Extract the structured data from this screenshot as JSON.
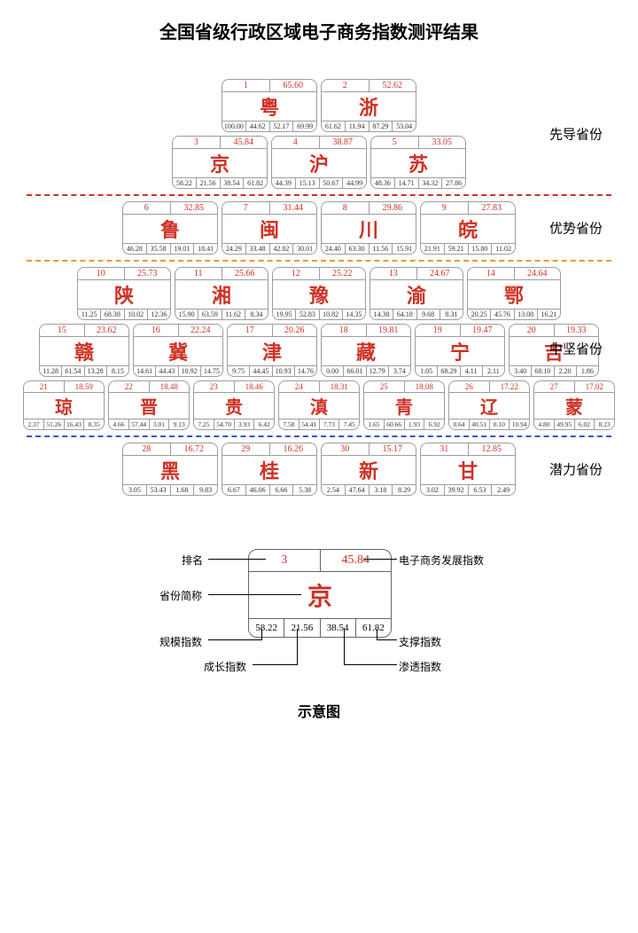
{
  "title": "全国省级行政区域电子商务指数测评结果",
  "divider_colors": [
    "#ce3226",
    "#e69b2d",
    "#3a4fcf"
  ],
  "tiers": [
    {
      "label": "先导省份",
      "rows": [
        [
          {
            "rank": 1,
            "score": "65.60",
            "name": "粤",
            "b": [
              "100.00",
              "44.62",
              "52.17",
              "69.99"
            ]
          },
          {
            "rank": 2,
            "score": "52.62",
            "name": "浙",
            "b": [
              "61.62",
              "11.94",
              "87.29",
              "53.04"
            ]
          }
        ],
        [
          {
            "rank": 3,
            "score": "45.84",
            "name": "京",
            "b": [
              "58.22",
              "21.56",
              "38.54",
              "61.82"
            ]
          },
          {
            "rank": 4,
            "score": "38.87",
            "name": "沪",
            "b": [
              "44.39",
              "15.13",
              "50.67",
              "44.99"
            ]
          },
          {
            "rank": 5,
            "score": "33.05",
            "name": "苏",
            "b": [
              "48.36",
              "14.71",
              "34.32",
              "27.86"
            ]
          }
        ]
      ]
    },
    {
      "label": "优势省份",
      "rows": [
        [
          {
            "rank": 6,
            "score": "32.85",
            "name": "鲁",
            "b": [
              "46.28",
              "35.58",
              "19.01",
              "18.41"
            ]
          },
          {
            "rank": 7,
            "score": "31.44",
            "name": "闽",
            "b": [
              "24.29",
              "33.48",
              "42.82",
              "30.01"
            ]
          },
          {
            "rank": 8,
            "score": "29.86",
            "name": "川",
            "b": [
              "24.40",
              "63.30",
              "11.56",
              "15.91"
            ]
          },
          {
            "rank": 9,
            "score": "27.83",
            "name": "皖",
            "b": [
              "21.91",
              "59.21",
              "15.80",
              "11.02"
            ]
          }
        ]
      ]
    },
    {
      "label": "中坚省份",
      "rows": [
        [
          {
            "rank": 10,
            "score": "25.73",
            "name": "陕",
            "b": [
              "11.25",
              "68.38",
              "10.02",
              "12.36"
            ]
          },
          {
            "rank": 11,
            "score": "25.66",
            "name": "湘",
            "b": [
              "15.90",
              "63.59",
              "11.62",
              "8.34"
            ]
          },
          {
            "rank": 12,
            "score": "25.22",
            "name": "豫",
            "b": [
              "19.95",
              "52.83",
              "10.82",
              "14.35"
            ]
          },
          {
            "rank": 13,
            "score": "24.67",
            "name": "渝",
            "b": [
              "14.38",
              "64.18",
              "9.68",
              "8.31"
            ]
          },
          {
            "rank": 14,
            "score": "24.64",
            "name": "鄂",
            "b": [
              "20.25",
              "45.76",
              "13.08",
              "16.21"
            ]
          }
        ],
        [
          {
            "rank": 15,
            "score": "23.62",
            "name": "赣",
            "b": [
              "11.28",
              "61.54",
              "13.28",
              "8.15"
            ]
          },
          {
            "rank": 16,
            "score": "22.24",
            "name": "冀",
            "b": [
              "14.61",
              "44.43",
              "10.92",
              "14.75"
            ]
          },
          {
            "rank": 17,
            "score": "20.26",
            "name": "津",
            "b": [
              "9.75",
              "44.45",
              "10.93",
              "14.76"
            ]
          },
          {
            "rank": 18,
            "score": "19.81",
            "name": "藏",
            "b": [
              "0.00",
              "66.01",
              "12.79",
              "3.74"
            ]
          },
          {
            "rank": 19,
            "score": "19.47",
            "name": "宁",
            "b": [
              "1.05",
              "68.29",
              "4.11",
              "2.11"
            ]
          },
          {
            "rank": 20,
            "score": "19.33",
            "name": "吉",
            "b": [
              "3.40",
              "68.10",
              "2.20",
              "1.86"
            ]
          }
        ],
        [
          {
            "rank": 21,
            "score": "18.59",
            "name": "琼",
            "b": [
              "2.37",
              "51.26",
              "16.43",
              "8.35"
            ]
          },
          {
            "rank": 22,
            "score": "18.48",
            "name": "晋",
            "b": [
              "4.66",
              "57.44",
              "3.01",
              "9.13"
            ]
          },
          {
            "rank": 23,
            "score": "18.46",
            "name": "贵",
            "b": [
              "7.25",
              "54.70",
              "3.93",
              "6.42"
            ]
          },
          {
            "rank": 24,
            "score": "18.31",
            "name": "滇",
            "b": [
              "7.58",
              "54.41",
              "7.73",
              "7.45"
            ]
          },
          {
            "rank": 25,
            "score": "18.08",
            "name": "青",
            "b": [
              "1.65",
              "60.66",
              "1.93",
              "6.92"
            ]
          },
          {
            "rank": 26,
            "score": "17.22",
            "name": "辽",
            "b": [
              "8.64",
              "40.51",
              "8.10",
              "10.94"
            ]
          },
          {
            "rank": 27,
            "score": "17.02",
            "name": "蒙",
            "b": [
              "4.80",
              "49.95",
              "6.02",
              "8.23"
            ]
          }
        ]
      ]
    },
    {
      "label": "潜力省份",
      "rows": [
        [
          {
            "rank": 28,
            "score": "16.72",
            "name": "黑",
            "b": [
              "3.05",
              "53.43",
              "1.68",
              "9.83"
            ]
          },
          {
            "rank": 29,
            "score": "16.26",
            "name": "桂",
            "b": [
              "6.67",
              "46.06",
              "6.66",
              "5.38"
            ]
          },
          {
            "rank": 30,
            "score": "15.17",
            "name": "新",
            "b": [
              "2.54",
              "47.64",
              "3.18",
              "8.29"
            ]
          },
          {
            "rank": 31,
            "score": "12.85",
            "name": "甘",
            "b": [
              "3.02",
              "39.92",
              "6.53",
              "2.49"
            ]
          }
        ]
      ]
    }
  ],
  "card_style": {
    "border_color": "#9d9d9d",
    "accent_color": "#ce3226"
  },
  "legend": {
    "rank": "3",
    "score": "45.84",
    "name": "京",
    "bottom": [
      "58.22",
      "21.56",
      "38.54",
      "61.82"
    ],
    "labels": {
      "rank": "排名",
      "score": "电子商务发展指数",
      "name": "省份简称",
      "b0": "规模指数",
      "b1": "成长指数",
      "b2": "渗透指数",
      "b3": "支撑指数"
    },
    "title": "示意图"
  }
}
